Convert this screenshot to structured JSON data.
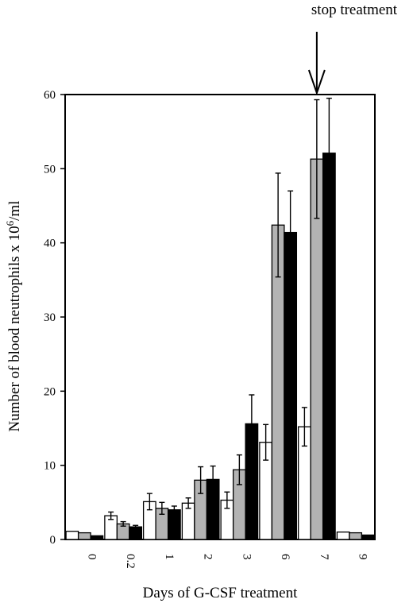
{
  "chart_data": {
    "type": "bar",
    "title": "",
    "xlabel": "Days of G-CSF treatment",
    "ylabel_main": "Number of blood neutrophils x 10",
    "ylabel_sup": "6",
    "ylabel_unit": "/ml",
    "ylim": [
      0,
      60
    ],
    "yticks": [
      0,
      10,
      20,
      30,
      40,
      50,
      60
    ],
    "categories": [
      "0",
      "0.2",
      "1",
      "2",
      "3",
      "6",
      "7",
      "9"
    ],
    "series": [
      {
        "color": "#ffffff",
        "values": [
          1.1,
          3.2,
          5.1,
          4.9,
          5.3,
          13.1,
          15.2,
          1.0
        ],
        "errors": [
          0.0,
          0.5,
          1.1,
          0.7,
          1.1,
          2.4,
          2.6,
          0.0
        ]
      },
      {
        "color": "#b3b3b3",
        "values": [
          0.9,
          2.1,
          4.2,
          8.0,
          9.4,
          42.4,
          51.3,
          0.9
        ],
        "errors": [
          0.0,
          0.3,
          0.8,
          1.8,
          2.0,
          7.0,
          8.0,
          0.0
        ]
      },
      {
        "color": "#000000",
        "values": [
          0.5,
          1.7,
          4.0,
          8.1,
          15.6,
          41.4,
          52.1,
          0.6
        ],
        "errors": [
          0.0,
          0.2,
          0.5,
          1.8,
          3.9,
          5.6,
          7.4,
          0.0
        ]
      }
    ],
    "annotation": {
      "text": "stop treatment",
      "category": "7"
    },
    "grid": false,
    "legend": "none"
  }
}
